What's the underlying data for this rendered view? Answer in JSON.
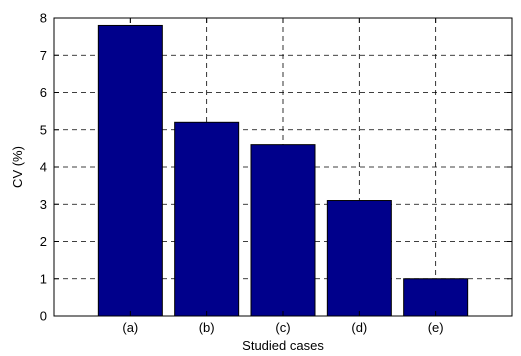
{
  "chart_data": {
    "type": "bar",
    "categories": [
      "(a)",
      "(b)",
      "(c)",
      "(d)",
      "(e)"
    ],
    "values": [
      7.8,
      5.2,
      4.6,
      3.1,
      1.0
    ],
    "title": "",
    "xlabel": "Studied cases",
    "ylabel": "CV (%)",
    "ylim": [
      0,
      8
    ],
    "yticks": [
      "0",
      "1",
      "2",
      "3",
      "4",
      "5",
      "6",
      "7",
      "8"
    ],
    "grid": true,
    "bar_color": "#00008B",
    "bar_edge_color": "#000000"
  }
}
